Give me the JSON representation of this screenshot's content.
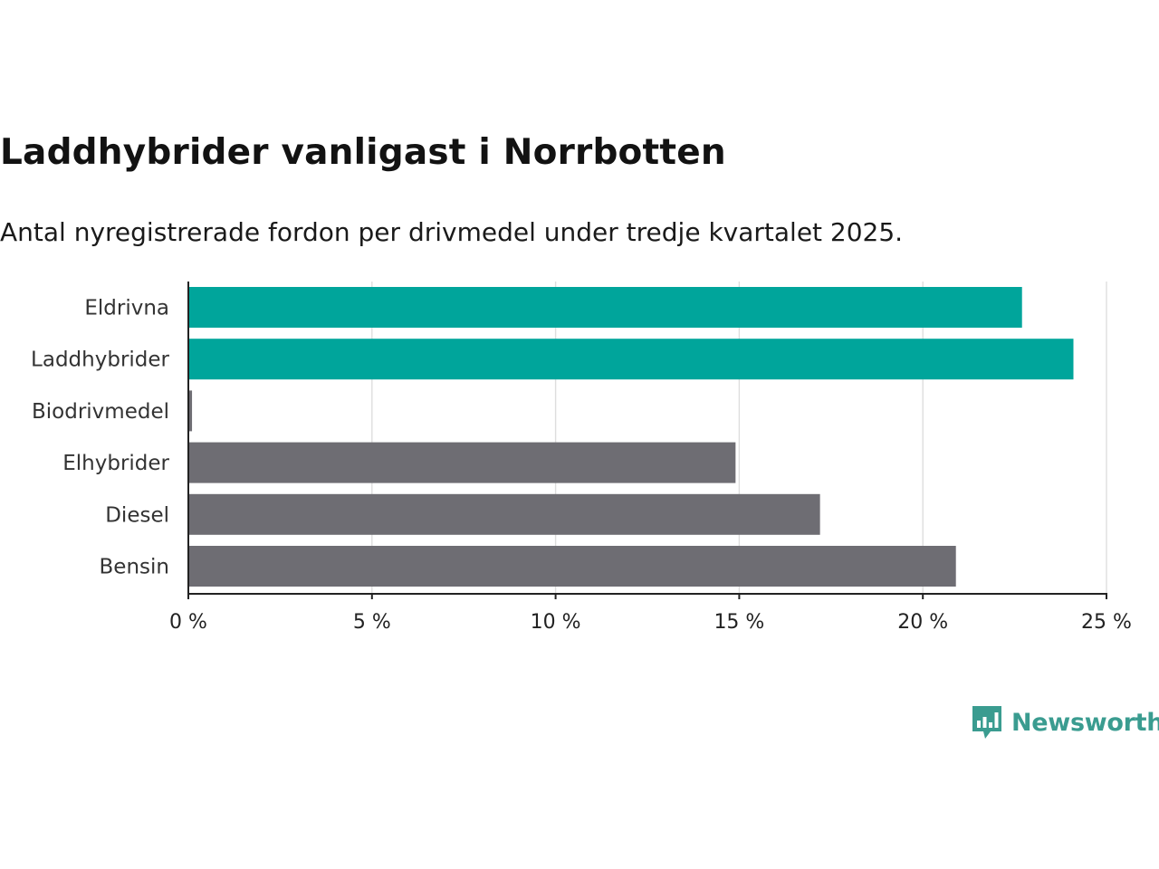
{
  "header": {
    "title": "Laddhybrider vanligast i Norrbotten",
    "subtitle": "Antal nyregistrerade fordon per drivmedel under tredje kvartalet 2025."
  },
  "brand": {
    "name": "Newsworthy",
    "icon": "bar-chart-speech-bubble-icon",
    "color": "#3a9c90"
  },
  "colors": {
    "highlight": "#00a59b",
    "default": "#6e6d73",
    "grid": "#dedede",
    "axis": "#222222"
  },
  "chart_data": {
    "type": "bar",
    "orientation": "horizontal",
    "title": "Laddhybrider vanligast i Norrbotten",
    "subtitle": "Antal nyregistrerade fordon per drivmedel under tredje kvartalet 2025.",
    "categories": [
      "Eldrivna",
      "Laddhybrider",
      "Biodrivmedel",
      "Elhybrider",
      "Diesel",
      "Bensin"
    ],
    "values": [
      22.7,
      24.1,
      0.1,
      14.9,
      17.2,
      20.9
    ],
    "highlighted": [
      true,
      true,
      false,
      false,
      false,
      false
    ],
    "xlim": [
      0,
      25
    ],
    "xticks": [
      0,
      5,
      10,
      15,
      20,
      25
    ],
    "tick_labels": [
      "0 %",
      "5 %",
      "10 %",
      "15 %",
      "20 %",
      "25 %"
    ],
    "xlabel": "",
    "ylabel": "",
    "grid": true
  }
}
